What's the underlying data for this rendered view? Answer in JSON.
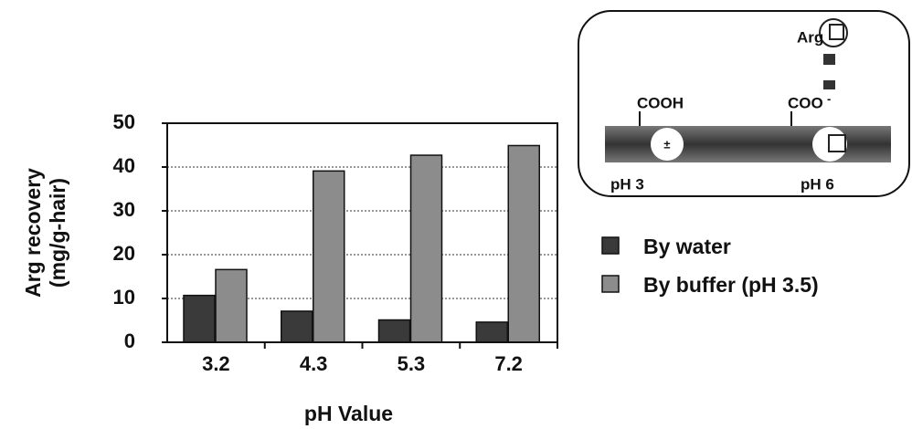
{
  "chart_data": {
    "type": "bar",
    "x_label": "pH Value",
    "y_label": [
      "Arg recovery",
      "(mg/g-hair)"
    ],
    "categories": [
      "3.2",
      "4.3",
      "5.3",
      "7.2"
    ],
    "series": [
      {
        "name": "By water",
        "color": "#3a3a3a",
        "values": [
          10.7,
          7.1,
          5.1,
          4.6
        ]
      },
      {
        "name": "By buffer (pH 3.5)",
        "color": "#8c8c8c",
        "values": [
          16.6,
          39.1,
          42.7,
          44.9
        ]
      }
    ],
    "ylim": [
      0,
      50
    ],
    "yticks": [
      0,
      10,
      20,
      30,
      40,
      50
    ],
    "grid": true
  },
  "inset": {
    "arg": "Arg",
    "left_group": "COOH",
    "right_group": "COO",
    "right_charge": "-",
    "zwitterion": "±",
    "left_ph": "pH 3",
    "right_ph": "pH 6"
  }
}
